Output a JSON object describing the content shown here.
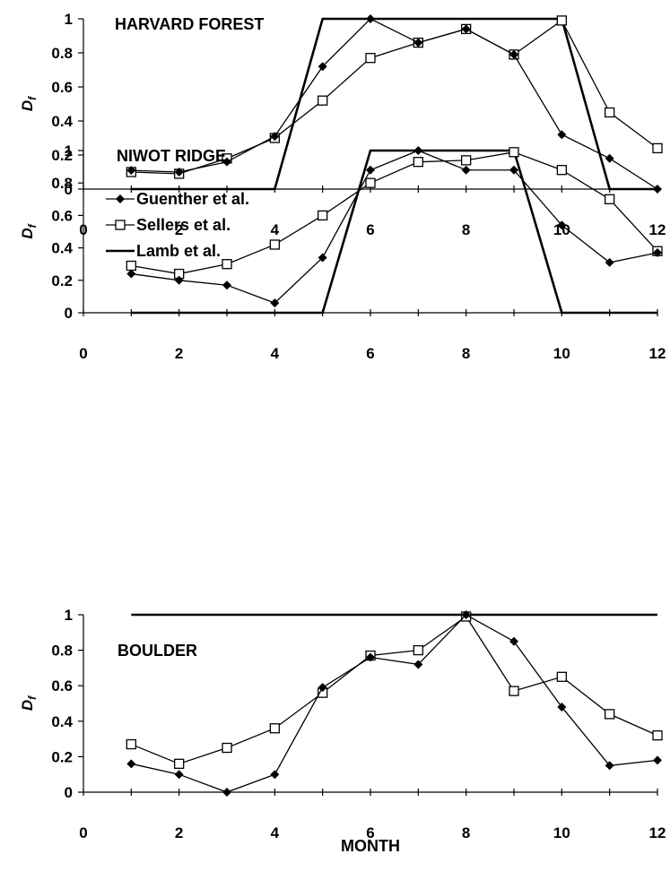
{
  "figure": {
    "xlabel": "MONTH"
  },
  "legend": {
    "entries": [
      "Guenther et al.",
      "Sellers et al.",
      "Lamb et al."
    ]
  },
  "chart_data": [
    {
      "type": "line",
      "title": "HARVARD FOREST",
      "ylabel": "D",
      "ylabel_subscript": "f",
      "xlim": [
        0,
        12
      ],
      "ylim": [
        0,
        1
      ],
      "x_ticks": [
        0,
        2,
        4,
        6,
        8,
        10,
        12
      ],
      "y_ticks": [
        0,
        0.2,
        0.4,
        0.6,
        0.8,
        1
      ],
      "series": [
        {
          "name": "Guenther et al.",
          "marker": "filled-diamond",
          "x": [
            1,
            2,
            3,
            4,
            5,
            6,
            7,
            8,
            9,
            10,
            11,
            12
          ],
          "y": [
            0.11,
            0.1,
            0.16,
            0.31,
            0.72,
            1.0,
            0.86,
            0.94,
            0.79,
            0.32,
            0.18,
            0.0
          ]
        },
        {
          "name": "Sellers et al.",
          "marker": "open-square",
          "x": [
            1,
            2,
            3,
            4,
            5,
            6,
            7,
            8,
            9,
            10,
            11,
            12
          ],
          "y": [
            0.1,
            0.09,
            0.18,
            0.3,
            0.52,
            0.77,
            0.86,
            0.94,
            0.79,
            0.99,
            0.45,
            0.24
          ]
        },
        {
          "name": "Lamb et al.",
          "marker": "none",
          "x": [
            1,
            4,
            5,
            10,
            11,
            12
          ],
          "y": [
            0,
            0,
            1,
            1,
            0,
            0
          ]
        }
      ]
    },
    {
      "type": "line",
      "title": "NIWOT RIDGE",
      "ylabel": "D",
      "ylabel_subscript": "f",
      "xlim": [
        0,
        12
      ],
      "ylim": [
        0,
        1
      ],
      "x_ticks": [
        0,
        2,
        4,
        6,
        8,
        10,
        12
      ],
      "y_ticks": [
        0,
        0.2,
        0.4,
        0.6,
        0.8,
        1
      ],
      "series": [
        {
          "name": "Guenther et al.",
          "marker": "filled-diamond",
          "x": [
            1,
            2,
            3,
            4,
            5,
            6,
            7,
            8,
            9,
            10,
            11,
            12
          ],
          "y": [
            0.24,
            0.2,
            0.17,
            0.06,
            0.34,
            0.88,
            1.0,
            0.88,
            0.88,
            0.54,
            0.31,
            0.37
          ]
        },
        {
          "name": "Sellers et al.",
          "marker": "open-square",
          "x": [
            1,
            2,
            3,
            4,
            5,
            6,
            7,
            8,
            9,
            10,
            11,
            12
          ],
          "y": [
            0.29,
            0.24,
            0.3,
            0.42,
            0.6,
            0.8,
            0.93,
            0.94,
            0.99,
            0.88,
            0.7,
            0.38
          ]
        },
        {
          "name": "Lamb et al.",
          "marker": "none",
          "x": [
            1,
            5,
            6,
            9,
            10,
            12
          ],
          "y": [
            0,
            0,
            1,
            1,
            0,
            0
          ]
        }
      ]
    },
    {
      "type": "line",
      "title": "BOULDER",
      "ylabel": "D",
      "ylabel_subscript": "f",
      "xlim": [
        0,
        12
      ],
      "ylim": [
        0,
        1
      ],
      "x_ticks": [
        0,
        2,
        4,
        6,
        8,
        10,
        12
      ],
      "y_ticks": [
        0,
        0.2,
        0.4,
        0.6,
        0.8,
        1
      ],
      "series": [
        {
          "name": "Guenther et al.",
          "marker": "filled-diamond",
          "x": [
            1,
            2,
            3,
            4,
            5,
            6,
            7,
            8,
            9,
            10,
            11,
            12
          ],
          "y": [
            0.16,
            0.1,
            0.0,
            0.1,
            0.59,
            0.76,
            0.72,
            1.0,
            0.85,
            0.48,
            0.15,
            0.18
          ]
        },
        {
          "name": "Sellers et al.",
          "marker": "open-square",
          "x": [
            1,
            2,
            3,
            4,
            5,
            6,
            7,
            8,
            9,
            10,
            11,
            12
          ],
          "y": [
            0.27,
            0.16,
            0.25,
            0.36,
            0.56,
            0.77,
            0.8,
            0.99,
            0.57,
            0.65,
            0.44,
            0.32
          ]
        },
        {
          "name": "Lamb et al.",
          "marker": "none",
          "x": [
            1,
            12
          ],
          "y": [
            1,
            1
          ]
        }
      ]
    }
  ]
}
